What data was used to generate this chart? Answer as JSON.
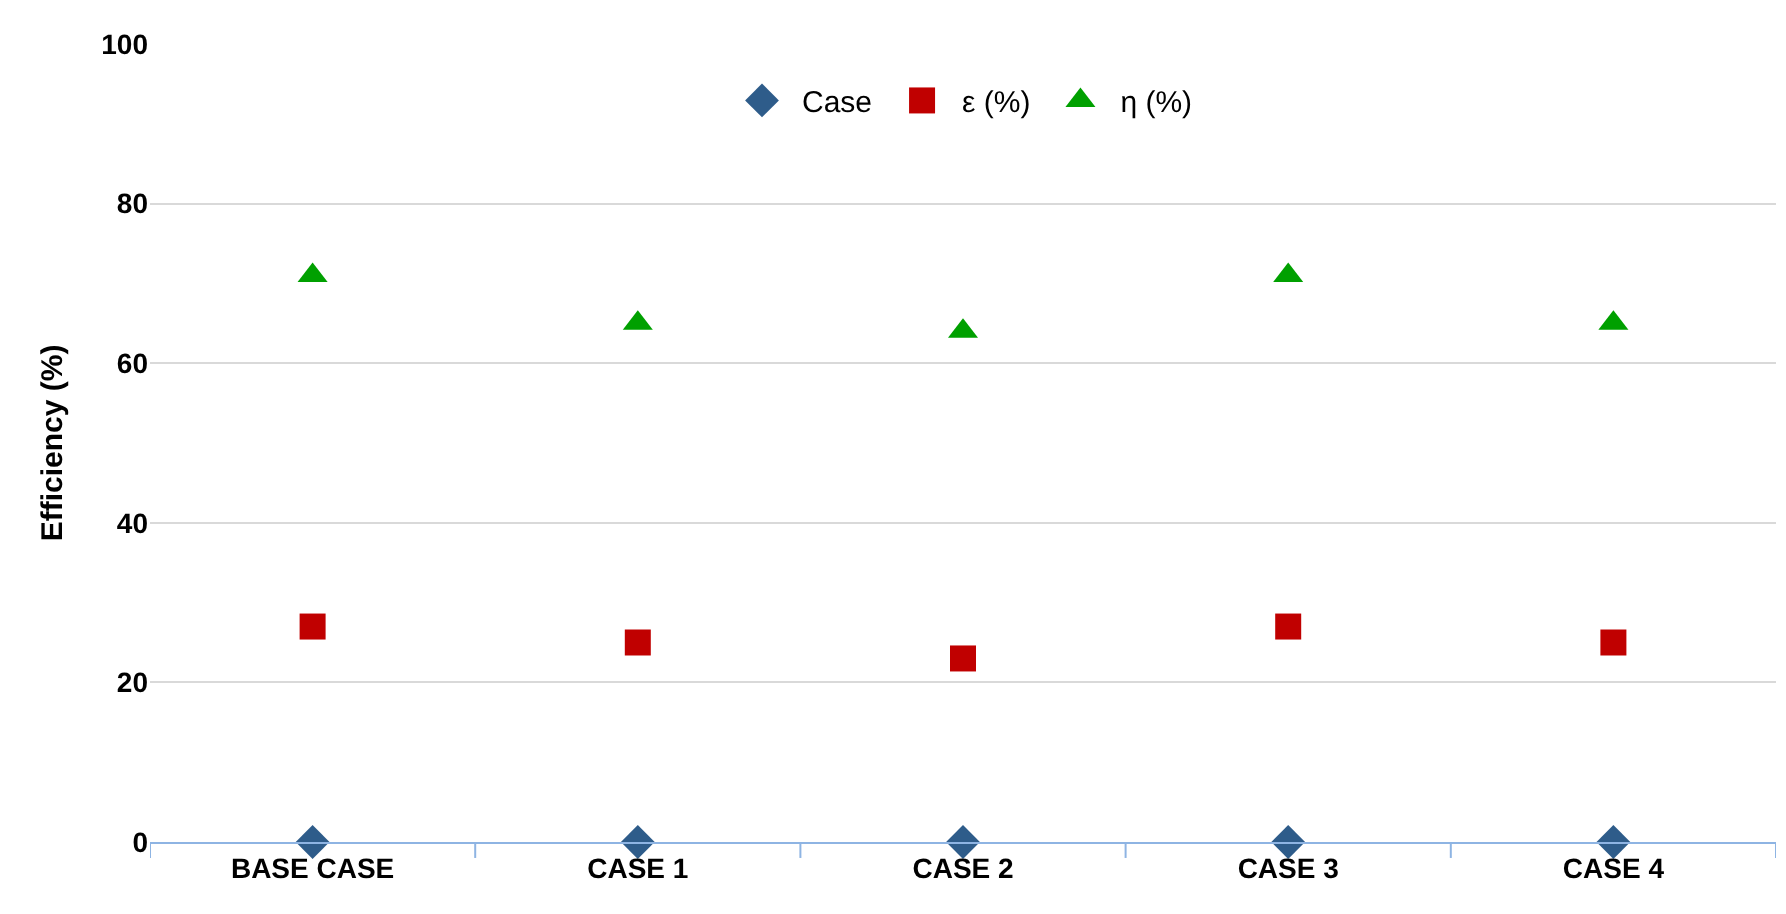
{
  "chart_data": {
    "type": "scatter",
    "ylabel": "Efficiency (%)",
    "categories": [
      "BASE CASE",
      "CASE 1",
      "CASE 2",
      "CASE 3",
      "CASE 4"
    ],
    "series": [
      {
        "name": "Case",
        "color": "#2e5c8a",
        "marker": "diamond",
        "values": [
          0,
          0,
          0,
          0,
          0
        ]
      },
      {
        "name": "ε (%)",
        "color": "#c00000",
        "marker": "square",
        "values": [
          27,
          25,
          23,
          27,
          25
        ]
      },
      {
        "name": "η (%)",
        "color": "#00a000",
        "marker": "triangle",
        "values": [
          71,
          65,
          64,
          71,
          65
        ]
      }
    ],
    "ylim": [
      0,
      100
    ],
    "yticks": [
      0,
      20,
      40,
      60,
      80,
      100
    ],
    "grid": "y",
    "legend": "top"
  }
}
